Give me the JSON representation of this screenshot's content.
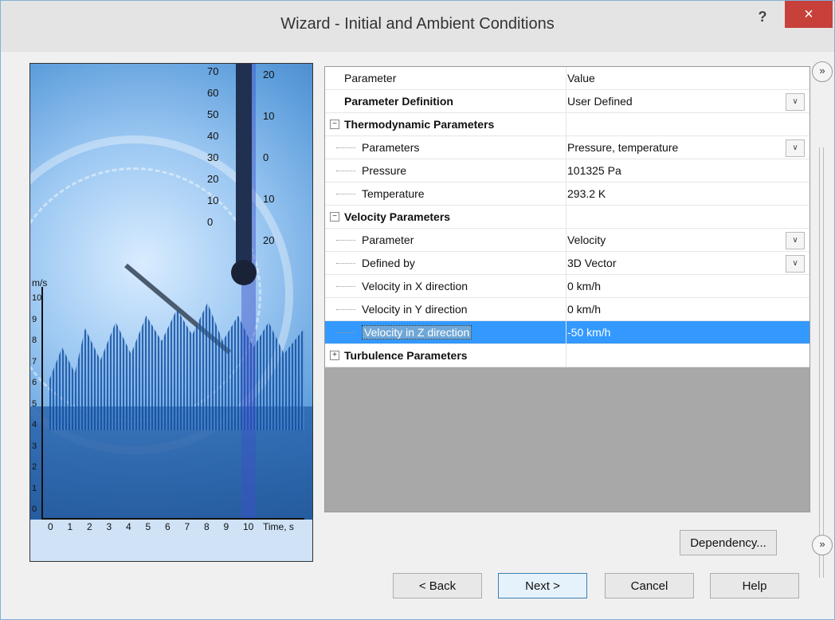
{
  "window": {
    "title": "Wizard - Initial and Ambient Conditions",
    "help_label": "?",
    "close_label": "×"
  },
  "image": {
    "scale_left": [
      "70",
      "60",
      "50",
      "40",
      "30",
      "20",
      "10",
      "0"
    ],
    "scale_right": [
      "20",
      "10",
      "0",
      "10",
      "20"
    ],
    "y_axis_label": "m/s",
    "y_ticks": [
      "10",
      "9",
      "8",
      "7",
      "6",
      "5",
      "4",
      "3",
      "2",
      "1",
      "0"
    ],
    "x_ticks": [
      "0",
      "1",
      "2",
      "3",
      "4",
      "5",
      "6",
      "7",
      "8",
      "9",
      "10"
    ],
    "x_axis_label": "Time, s"
  },
  "grid": {
    "header": {
      "parameter": "Parameter",
      "value": "Value"
    },
    "rows": [
      {
        "label": "Parameter Definition",
        "value": "User Defined",
        "dropdown": true
      },
      {
        "label": "Thermodynamic Parameters",
        "value": "",
        "group": true,
        "expanded": true,
        "expander": "−"
      },
      {
        "label": "Parameters",
        "value": "Pressure, temperature",
        "dropdown": true,
        "child": true
      },
      {
        "label": "Pressure",
        "value": "101325 Pa",
        "child": true
      },
      {
        "label": "Temperature",
        "value": "293.2 K",
        "child": true
      },
      {
        "label": "Velocity Parameters",
        "value": "",
        "group": true,
        "expanded": true,
        "expander": "−"
      },
      {
        "label": "Parameter",
        "value": "Velocity",
        "dropdown": true,
        "child": true
      },
      {
        "label": "Defined by",
        "value": "3D Vector",
        "dropdown": true,
        "child": true
      },
      {
        "label": "Velocity in X direction",
        "value": "0 km/h",
        "child": true
      },
      {
        "label": "Velocity in Y direction",
        "value": "0 km/h",
        "child": true
      },
      {
        "label": "Velocity in Z direction",
        "value": "-50 km/h",
        "child": true,
        "selected": true
      },
      {
        "label": "Turbulence Parameters",
        "value": "",
        "group": true,
        "expanded": false,
        "expander": "+"
      }
    ]
  },
  "side": {
    "top_label": "»",
    "bottom_label": "»"
  },
  "buttons": {
    "dependency": "Dependency...",
    "back": "< Back",
    "next": "Next >",
    "cancel": "Cancel",
    "help": "Help"
  },
  "colors": {
    "selection": "#3399ff",
    "close": "#c7403a"
  }
}
